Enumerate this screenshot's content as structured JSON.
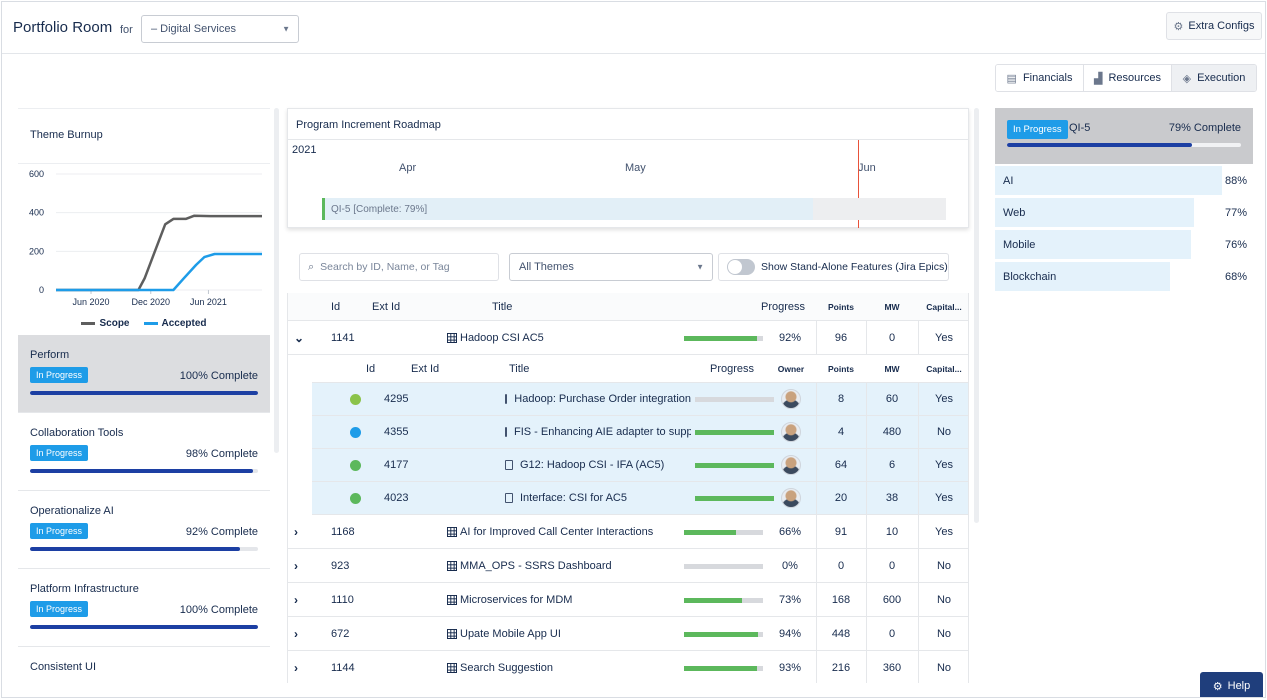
{
  "header": {
    "title": "Portfolio Room",
    "for_label": "for",
    "portfolio_select": "– Digital Services",
    "extra_configs": "Extra Configs"
  },
  "view_tabs": [
    "Financials",
    "Resources",
    "Execution"
  ],
  "theme_burnup": {
    "title": "Theme Burnup",
    "legend_scope": "Scope",
    "legend_accepted": "Accepted"
  },
  "chart_data": {
    "type": "line",
    "title": "Theme Burnup",
    "x": [
      "Jun 2020",
      "Dec 2020",
      "Jun 2021"
    ],
    "y_ticks": [
      0,
      200,
      400,
      600
    ],
    "ylim": [
      0,
      600
    ],
    "grid": true,
    "legend_position": "bottom",
    "series": [
      {
        "name": "Scope",
        "color": "#5e5e5e",
        "points": [
          [
            0,
            0
          ],
          [
            0.26,
            0
          ],
          [
            0.4,
            0
          ],
          [
            0.43,
            60
          ],
          [
            0.48,
            200
          ],
          [
            0.53,
            340
          ],
          [
            0.57,
            368
          ],
          [
            0.63,
            368
          ],
          [
            0.67,
            384
          ],
          [
            0.75,
            382
          ],
          [
            1.0,
            382
          ]
        ]
      },
      {
        "name": "Accepted",
        "color": "#1e9ce8",
        "points": [
          [
            0,
            0
          ],
          [
            0.26,
            0
          ],
          [
            0.57,
            0
          ],
          [
            0.62,
            60
          ],
          [
            0.68,
            130
          ],
          [
            0.72,
            170
          ],
          [
            0.77,
            186
          ],
          [
            0.85,
            186
          ],
          [
            1.0,
            186
          ]
        ]
      }
    ]
  },
  "themes": [
    {
      "name": "Perform",
      "status": "In Progress",
      "complete": "100% Complete",
      "pct": 100,
      "active": true
    },
    {
      "name": "Collaboration Tools",
      "status": "In Progress",
      "complete": "98% Complete",
      "pct": 98
    },
    {
      "name": "Operationalize AI",
      "status": "In Progress",
      "complete": "92% Complete",
      "pct": 92
    },
    {
      "name": "Platform Infrastructure",
      "status": "In Progress",
      "complete": "100% Complete",
      "pct": 100
    },
    {
      "name": "Consistent UI"
    }
  ],
  "roadmap": {
    "title": "Program Increment Roadmap",
    "year": "2021",
    "months": [
      "Apr",
      "May",
      "Jun"
    ],
    "bar_label": "QI-5 [Complete: 79%]",
    "bar_pct": 79
  },
  "filters": {
    "search_placeholder": "Search by ID, Name, or Tag",
    "themes_select": "All Themes",
    "standalone_label": "Show Stand-Alone Features (Jira Epics)"
  },
  "table": {
    "headers": {
      "id": "Id",
      "ext_id": "Ext Id",
      "title": "Title",
      "progress": "Progress",
      "points": "Points",
      "mw": "MW",
      "capital": "Capital..."
    },
    "sub_headers": {
      "id": "Id",
      "ext_id": "Ext Id",
      "title": "Title",
      "progress": "Progress",
      "owner": "Owner",
      "points": "Points",
      "mw": "MW",
      "capital": "Capital..."
    },
    "expanded_row": {
      "id": "1141",
      "title": "Hadoop CSI AC5",
      "progress": "92%",
      "pct": 92,
      "points": "96",
      "mw": "0",
      "capital": "Yes"
    },
    "children": [
      {
        "status_color": "#8bc34a",
        "id": "4295",
        "title": "Hadoop: Purchase Order integration",
        "pct": 0,
        "points": "8",
        "mw": "60",
        "capital": "Yes"
      },
      {
        "status_color": "#1e9ce8",
        "id": "4355",
        "title": "FIS - Enhancing AIE adapter to suppo",
        "pct": 100,
        "points": "4",
        "mw": "480",
        "capital": "No"
      },
      {
        "status_color": "#5cb85c",
        "id": "4177",
        "title": "G12: Hadoop CSI - IFA (AC5)",
        "pct": 100,
        "points": "64",
        "mw": "6",
        "capital": "Yes"
      },
      {
        "status_color": "#5cb85c",
        "id": "4023",
        "title": "Interface: CSI for AC5",
        "pct": 100,
        "points": "20",
        "mw": "38",
        "capital": "Yes"
      }
    ],
    "rows": [
      {
        "id": "1168",
        "title": "AI for Improved Call Center Interactions",
        "progress": "66%",
        "pct": 66,
        "points": "91",
        "mw": "10",
        "capital": "Yes"
      },
      {
        "id": "923",
        "title": "MMA_OPS - SSRS Dashboard",
        "progress": "0%",
        "pct": 0,
        "points": "0",
        "mw": "0",
        "capital": "No"
      },
      {
        "id": "1110",
        "title": "Microservices for MDM",
        "progress": "73%",
        "pct": 73,
        "points": "168",
        "mw": "600",
        "capital": "No"
      },
      {
        "id": "672",
        "title": "Upate Mobile App UI",
        "progress": "94%",
        "pct": 94,
        "points": "448",
        "mw": "0",
        "capital": "No"
      },
      {
        "id": "1144",
        "title": "Search Suggestion",
        "progress": "93%",
        "pct": 93,
        "points": "216",
        "mw": "360",
        "capital": "No"
      }
    ]
  },
  "increment": {
    "status": "In Progress",
    "name": "QI-5",
    "complete": "79% Complete",
    "pct": 79,
    "themes": [
      {
        "name": "AI",
        "pct_text": "88%",
        "pct": 88
      },
      {
        "name": "Web",
        "pct_text": "77%",
        "pct": 77
      },
      {
        "name": "Mobile",
        "pct_text": "76%",
        "pct": 76
      },
      {
        "name": "Blockchain",
        "pct_text": "68%",
        "pct": 68
      }
    ]
  },
  "help_label": "Help"
}
